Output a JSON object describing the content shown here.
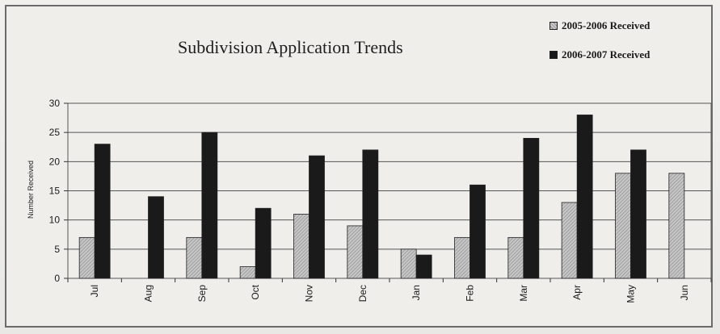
{
  "chart_data": {
    "type": "bar",
    "title": "Subdivision Application Trends",
    "ylabel": "Number Received",
    "xlabel": "",
    "categories": [
      "Jul",
      "Aug",
      "Sep",
      "Oct",
      "Nov",
      "Dec",
      "Jan",
      "Feb",
      "Mar",
      "Apr",
      "May",
      "Jun"
    ],
    "series": [
      {
        "name": "2005-2006 Received",
        "color": "#b4b4b4",
        "values": [
          7,
          0,
          7,
          2,
          11,
          9,
          5,
          7,
          7,
          13,
          18,
          18
        ]
      },
      {
        "name": "2006-2007 Received",
        "color": "#1a1a1a",
        "values": [
          23,
          14,
          25,
          12,
          21,
          22,
          4,
          16,
          24,
          28,
          22,
          null
        ]
      }
    ],
    "ylim": [
      0,
      30
    ],
    "yticks": [
      0,
      5,
      10,
      15,
      20,
      25,
      30
    ],
    "grid": true,
    "legend_position": "top-right"
  }
}
